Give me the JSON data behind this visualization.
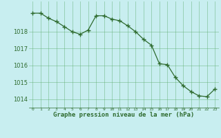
{
  "x": [
    0,
    1,
    2,
    3,
    4,
    5,
    6,
    7,
    8,
    9,
    10,
    11,
    12,
    13,
    14,
    15,
    16,
    17,
    18,
    19,
    20,
    21,
    22,
    23
  ],
  "y": [
    1019.1,
    1019.1,
    1018.8,
    1018.6,
    1018.3,
    1018.0,
    1017.85,
    1018.1,
    1018.95,
    1018.95,
    1018.75,
    1018.65,
    1018.35,
    1018.0,
    1017.55,
    1017.2,
    1016.1,
    1016.05,
    1015.3,
    1014.8,
    1014.45,
    1014.2,
    1014.15,
    1014.6
  ],
  "line_color": "#2d6a2d",
  "marker_color": "#2d6a2d",
  "bg_color": "#c8eef0",
  "grid_color": "#5aaa6a",
  "xlabel": "Graphe pression niveau de la mer (hPa)",
  "xlabel_color": "#2d6a2d",
  "tick_color": "#2d6a2d",
  "ylim_min": 1013.5,
  "ylim_max": 1019.8,
  "yticks": [
    1014,
    1015,
    1016,
    1017,
    1018
  ],
  "xtick_labels": [
    "0",
    "1",
    "2",
    "3",
    "4",
    "5",
    "6",
    "7",
    "8",
    "9",
    "10",
    "11",
    "12",
    "13",
    "14",
    "15",
    "16",
    "17",
    "18",
    "19",
    "20",
    "21",
    "22",
    "23"
  ]
}
